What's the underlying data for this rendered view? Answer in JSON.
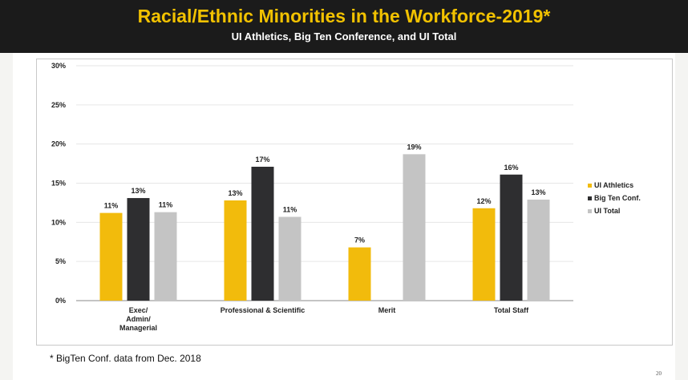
{
  "slide": {
    "title": "Racial/Ethnic Minorities in the Workforce-2019*",
    "subtitle": "UI Athletics, Big Ten Conference, and UI Total",
    "footnote": "* BigTen Conf. data from Dec. 2018",
    "page_number": "20"
  },
  "colors": {
    "header_bg": "#1b1b1b",
    "title": "#f2c200",
    "ui_athletics": "#f2bb0c",
    "big_ten": "#2e2e30",
    "ui_total": "#c4c4c4"
  },
  "chart_data": {
    "type": "bar",
    "title": "",
    "xlabel": "",
    "ylabel": "",
    "ylim": [
      0,
      30
    ],
    "yticks": [
      0,
      5,
      10,
      15,
      20,
      25,
      30
    ],
    "ytick_labels": [
      "0%",
      "5%",
      "10%",
      "15%",
      "20%",
      "25%",
      "30%"
    ],
    "grid": true,
    "legend": "right",
    "categories": [
      [
        "Exec/",
        "Admin/",
        "Managerial"
      ],
      [
        "Professional & Scientific"
      ],
      [
        "Merit"
      ],
      [
        "Total Staff"
      ]
    ],
    "series": [
      {
        "name": "UI Athletics",
        "values": [
          11.2,
          12.8,
          6.8,
          11.8
        ],
        "labels": [
          "11%",
          "13%",
          "7%",
          "12%"
        ]
      },
      {
        "name": "Big Ten Conf.",
        "values": [
          13.1,
          17.1,
          null,
          16.1
        ],
        "labels": [
          "13%",
          "17%",
          "",
          "16%"
        ]
      },
      {
        "name": "UI Total",
        "values": [
          11.3,
          10.7,
          18.7,
          12.9
        ],
        "labels": [
          "11%",
          "11%",
          "19%",
          "13%"
        ]
      }
    ]
  }
}
